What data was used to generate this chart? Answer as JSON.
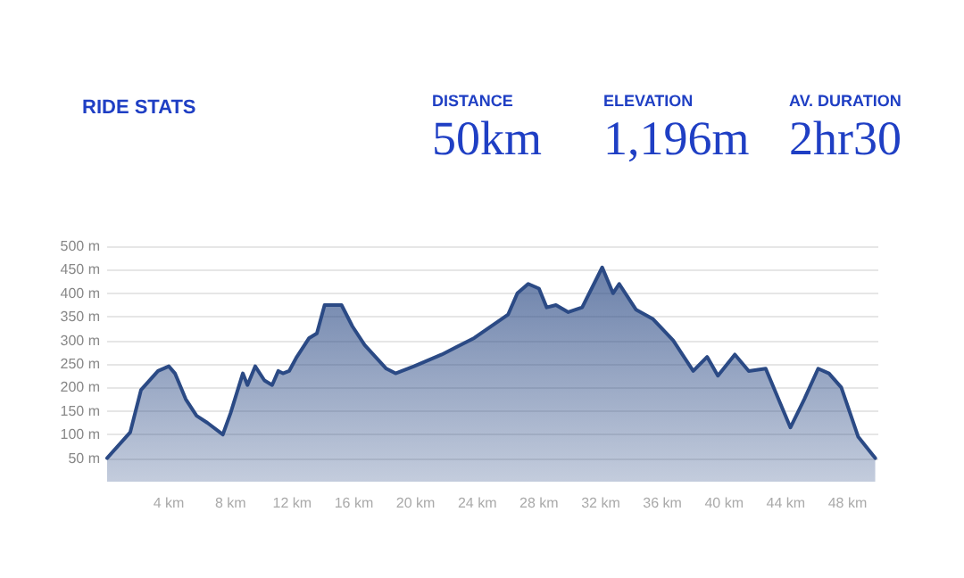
{
  "chart_data": {
    "type": "area",
    "title": "RIDE STATS",
    "annotations": [
      "DISTANCE",
      "50km",
      "ELEVATION",
      "1,196m",
      "AV. DURATION",
      "2hr30"
    ],
    "x": [
      0,
      1.5,
      2.2,
      3.3,
      4,
      4.4,
      5.1,
      5.8,
      6.5,
      7.5,
      8,
      8.8,
      9.1,
      9.6,
      10.2,
      10.7,
      11.1,
      11.4,
      11.8,
      12.3,
      13.1,
      13.6,
      14.1,
      15.2,
      15.9,
      16.7,
      18.1,
      18.7,
      19.9,
      21.7,
      23.8,
      26,
      26.6,
      27.3,
      28,
      28.5,
      29.1,
      29.9,
      30.8,
      32.1,
      32.8,
      33.2,
      34.3,
      35.4,
      36.7,
      38,
      38.9,
      39.6,
      40.7,
      41.6,
      42.7,
      44.3,
      45.2,
      46.1,
      46.8,
      47.6,
      48.7,
      49.8
    ],
    "series": [
      {
        "color": "#2b4a85",
        "values": [
          50,
          105,
          195,
          235,
          245,
          230,
          175,
          140,
          125,
          100,
          145,
          230,
          205,
          245,
          215,
          205,
          235,
          230,
          235,
          265,
          305,
          315,
          375,
          375,
          330,
          290,
          240,
          230,
          245,
          270,
          305,
          355,
          400,
          420,
          410,
          370,
          375,
          360,
          370,
          455,
          400,
          420,
          365,
          345,
          300,
          235,
          265,
          225,
          270,
          235,
          240,
          115,
          175,
          240,
          230,
          200,
          95,
          50
        ]
      }
    ],
    "xlim": [
      0,
      50
    ],
    "ylim": [
      0,
      500
    ],
    "xticks": [
      {
        "value": 4,
        "label": "4 km"
      },
      {
        "value": 8,
        "label": "8 km"
      },
      {
        "value": 12,
        "label": "12 km"
      },
      {
        "value": 16,
        "label": "16 km"
      },
      {
        "value": 20,
        "label": "20 km"
      },
      {
        "value": 24,
        "label": "24 km"
      },
      {
        "value": 28,
        "label": "28 km"
      },
      {
        "value": 32,
        "label": "32 km"
      },
      {
        "value": 36,
        "label": "36 km"
      },
      {
        "value": 40,
        "label": "40 km"
      },
      {
        "value": 44,
        "label": "44 km"
      },
      {
        "value": 48,
        "label": "48 km"
      }
    ],
    "yticks": [
      {
        "value": 50,
        "label": "50 m"
      },
      {
        "value": 100,
        "label": "100 m"
      },
      {
        "value": 150,
        "label": "150 m"
      },
      {
        "value": 200,
        "label": "200 m"
      },
      {
        "value": 250,
        "label": "250 m"
      },
      {
        "value": 300,
        "label": "300 m"
      },
      {
        "value": 350,
        "label": "350 m"
      },
      {
        "value": 400,
        "label": "400 m"
      },
      {
        "value": 450,
        "label": "450 m"
      },
      {
        "value": 500,
        "label": "500 m"
      }
    ],
    "grid": "y",
    "marker": "none",
    "line_style": "solid"
  }
}
